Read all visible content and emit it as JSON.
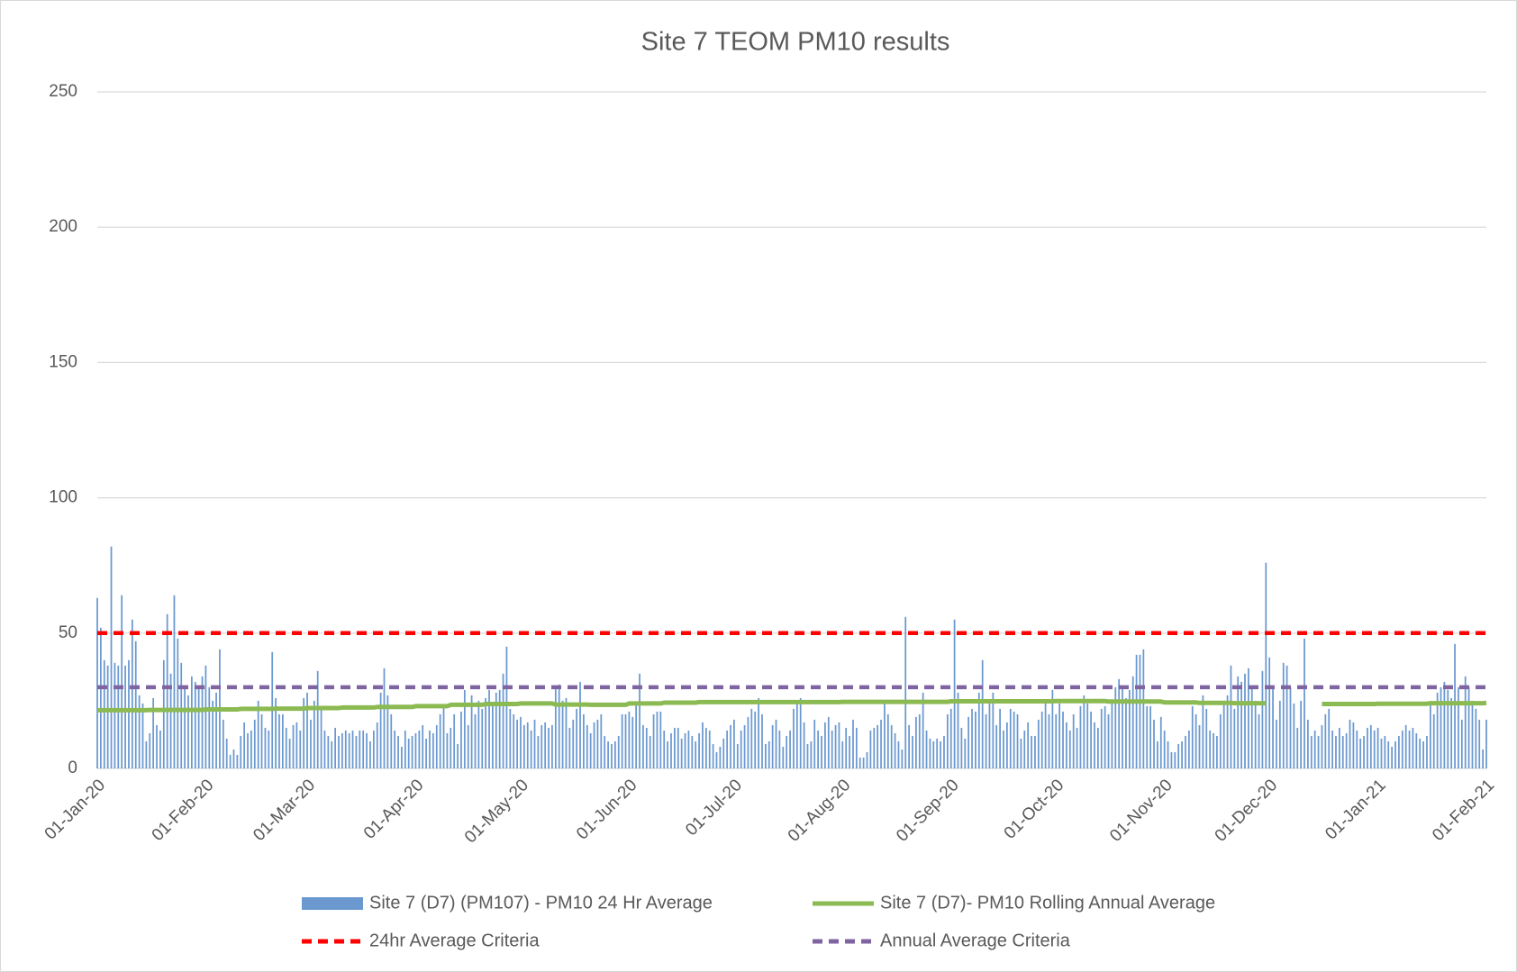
{
  "chart_data": {
    "type": "bar",
    "title": "Site 7 TEOM PM10 results",
    "categories": [
      "01-Jan-20",
      null,
      null,
      null,
      null,
      null,
      null,
      null,
      null,
      null,
      null,
      null,
      null,
      null,
      null,
      null,
      null,
      null,
      null,
      null,
      null,
      null,
      null,
      null,
      null,
      null,
      null,
      null,
      null,
      null,
      null,
      "01-Feb-20",
      null,
      null,
      null,
      null,
      null,
      null,
      null,
      null,
      null,
      null,
      null,
      null,
      null,
      null,
      null,
      null,
      null,
      null,
      null,
      null,
      null,
      null,
      null,
      null,
      null,
      null,
      null,
      null,
      "01-Mar-20",
      null,
      null,
      null,
      null,
      null,
      null,
      null,
      null,
      null,
      null,
      null,
      null,
      null,
      null,
      null,
      null,
      null,
      null,
      null,
      null,
      null,
      null,
      null,
      null,
      null,
      null,
      null,
      null,
      null,
      null,
      "01-Apr-20",
      null,
      null,
      null,
      null,
      null,
      null,
      null,
      null,
      null,
      null,
      null,
      null,
      null,
      null,
      null,
      null,
      null,
      null,
      null,
      null,
      null,
      null,
      null,
      null,
      null,
      null,
      null,
      null,
      null,
      "01-May-20",
      null,
      null,
      null,
      null,
      null,
      null,
      null,
      null,
      null,
      null,
      null,
      null,
      null,
      null,
      null,
      null,
      null,
      null,
      null,
      null,
      null,
      null,
      null,
      null,
      null,
      null,
      null,
      null,
      null,
      null,
      "01-Jun-20",
      null,
      null,
      null,
      null,
      null,
      null,
      null,
      null,
      null,
      null,
      null,
      null,
      null,
      null,
      null,
      null,
      null,
      null,
      null,
      null,
      null,
      null,
      null,
      null,
      null,
      null,
      null,
      null,
      null,
      "01-Jul-20",
      null,
      null,
      null,
      null,
      null,
      null,
      null,
      null,
      null,
      null,
      null,
      null,
      null,
      null,
      null,
      null,
      null,
      null,
      null,
      null,
      null,
      null,
      null,
      null,
      null,
      null,
      null,
      null,
      null,
      null,
      "01-Aug-20",
      null,
      null,
      null,
      null,
      null,
      null,
      null,
      null,
      null,
      null,
      null,
      null,
      null,
      null,
      null,
      null,
      null,
      null,
      null,
      null,
      null,
      null,
      null,
      null,
      null,
      null,
      null,
      null,
      null,
      null,
      "01-Sep-20",
      null,
      null,
      null,
      null,
      null,
      null,
      null,
      null,
      null,
      null,
      null,
      null,
      null,
      null,
      null,
      null,
      null,
      null,
      null,
      null,
      null,
      null,
      null,
      null,
      null,
      null,
      null,
      null,
      null,
      "01-Oct-20",
      null,
      null,
      null,
      null,
      null,
      null,
      null,
      null,
      null,
      null,
      null,
      null,
      null,
      null,
      null,
      null,
      null,
      null,
      null,
      null,
      null,
      null,
      null,
      null,
      null,
      null,
      null,
      null,
      null,
      null,
      "01-Nov-20",
      null,
      null,
      null,
      null,
      null,
      null,
      null,
      null,
      null,
      null,
      null,
      null,
      null,
      null,
      null,
      null,
      null,
      null,
      null,
      null,
      null,
      null,
      null,
      null,
      null,
      null,
      null,
      null,
      null,
      "01-Dec-20",
      null,
      null,
      null,
      null,
      null,
      null,
      null,
      null,
      null,
      null,
      null,
      null,
      null,
      null,
      null,
      null,
      null,
      null,
      null,
      null,
      null,
      null,
      null,
      null,
      null,
      null,
      null,
      null,
      null,
      null,
      "01-Jan-21",
      null,
      null,
      null,
      null,
      null,
      null,
      null,
      null,
      null,
      null,
      null,
      null,
      null,
      null,
      null,
      null,
      null,
      null,
      null,
      null,
      null,
      null,
      null,
      null,
      null,
      null,
      null,
      null,
      null,
      null,
      "01-Feb-21"
    ],
    "series": [
      {
        "name": "Site 7 (D7) (PM107) - PM10 24 Hr Average",
        "type": "bar",
        "color": "#6a98cf",
        "values": [
          63,
          52,
          40,
          38,
          82,
          39,
          38,
          64,
          38,
          40,
          55,
          47,
          27,
          24,
          10,
          13,
          26,
          16,
          14,
          40,
          57,
          35,
          64,
          48,
          39,
          30,
          27,
          34,
          32,
          30,
          34,
          38,
          30,
          25,
          28,
          44,
          18,
          11,
          5,
          7,
          5,
          12,
          17,
          13,
          14,
          18,
          25,
          20,
          15,
          14,
          43,
          26,
          20,
          20,
          15,
          11,
          16,
          17,
          14,
          26,
          28,
          18,
          25,
          36,
          22,
          14,
          12,
          10,
          15,
          12,
          13,
          14,
          13,
          14,
          12,
          14,
          14,
          13,
          10,
          14,
          17,
          28,
          37,
          27,
          20,
          14,
          12,
          8,
          14,
          11,
          12,
          13,
          14,
          16,
          11,
          14,
          13,
          16,
          20,
          23,
          13,
          15,
          20,
          9,
          21,
          29,
          16,
          27,
          20,
          25,
          22,
          26,
          29,
          24,
          28,
          29,
          35,
          45,
          22,
          20,
          18,
          19,
          16,
          17,
          14,
          18,
          12,
          16,
          17,
          15,
          16,
          30,
          31,
          25,
          26,
          15,
          18,
          22,
          32,
          20,
          16,
          13,
          17,
          18,
          20,
          12,
          10,
          9,
          10,
          12,
          20,
          20,
          21,
          19,
          24,
          35,
          16,
          15,
          12,
          20,
          21,
          21,
          14,
          10,
          13,
          15,
          15,
          11,
          13,
          14,
          12,
          10,
          13,
          17,
          15,
          14,
          9,
          6,
          8,
          11,
          14,
          16,
          18,
          9,
          14,
          16,
          19,
          22,
          21,
          26,
          20,
          9,
          10,
          16,
          18,
          14,
          8,
          12,
          14,
          22,
          24,
          26,
          17,
          9,
          10,
          18,
          14,
          12,
          17,
          19,
          14,
          16,
          17,
          10,
          15,
          12,
          18,
          15,
          4,
          4,
          6,
          14,
          15,
          16,
          18,
          24,
          20,
          16,
          13,
          10,
          7,
          56,
          16,
          12,
          19,
          20,
          28,
          14,
          11,
          10,
          11,
          10,
          12,
          20,
          22,
          55,
          28,
          15,
          11,
          19,
          22,
          21,
          28,
          40,
          20,
          25,
          28,
          16,
          22,
          14,
          17,
          22,
          21,
          20,
          11,
          14,
          17,
          12,
          12,
          18,
          21,
          25,
          20,
          29,
          20,
          24,
          21,
          17,
          14,
          20,
          15,
          23,
          27,
          24,
          21,
          17,
          15,
          22,
          23,
          20,
          25,
          30,
          33,
          30,
          26,
          29,
          34,
          42,
          42,
          44,
          23,
          23,
          18,
          10,
          19,
          14,
          10,
          6,
          6,
          9,
          10,
          12,
          14,
          23,
          20,
          16,
          27,
          22,
          14,
          13,
          12,
          20,
          25,
          27,
          38,
          22,
          34,
          32,
          35,
          37,
          30,
          25,
          20,
          36,
          76,
          41,
          30,
          18,
          25,
          39,
          38,
          30,
          24,
          15,
          25,
          48,
          18,
          12,
          14,
          12,
          16,
          20,
          22,
          14,
          12,
          15,
          12,
          13,
          18,
          17,
          14,
          11,
          12,
          15,
          16,
          14,
          15,
          11,
          12,
          10,
          8,
          10,
          12,
          14,
          16,
          14,
          15,
          13,
          11,
          10,
          12,
          24,
          20,
          28,
          30,
          32,
          29,
          26,
          46,
          30,
          18,
          34,
          30,
          25,
          22,
          18,
          7,
          18
        ]
      },
      {
        "name": "Site 7 (D7)- PM10 Rolling Annual Average",
        "type": "line",
        "color": "#8cba52",
        "values": [
          21.5,
          21.5,
          21.5,
          21.5,
          21.5,
          21.5,
          21.5,
          21.5,
          21.5,
          21.5,
          21.5,
          21.5,
          21.5,
          21.5,
          21.5,
          21.6,
          21.6,
          21.6,
          21.6,
          21.6,
          21.6,
          21.6,
          21.6,
          21.6,
          21.6,
          21.6,
          21.6,
          21.6,
          21.6,
          21.6,
          21.6,
          21.8,
          21.8,
          21.8,
          21.8,
          21.8,
          21.8,
          21.8,
          21.8,
          21.8,
          21.8,
          22.0,
          22.0,
          22.0,
          22.0,
          22.0,
          22.0,
          22.0,
          22.0,
          22.0,
          22.0,
          22.1,
          22.1,
          22.1,
          22.1,
          22.1,
          22.1,
          22.1,
          22.1,
          22.1,
          22.3,
          22.3,
          22.3,
          22.3,
          22.3,
          22.3,
          22.3,
          22.3,
          22.3,
          22.3,
          22.5,
          22.5,
          22.5,
          22.5,
          22.5,
          22.5,
          22.5,
          22.5,
          22.5,
          22.5,
          22.7,
          22.7,
          22.7,
          22.7,
          22.7,
          22.7,
          22.7,
          22.7,
          22.7,
          22.7,
          22.7,
          23.0,
          23.0,
          23.0,
          23.0,
          23.0,
          23.0,
          23.0,
          23.0,
          23.0,
          23.0,
          23.5,
          23.5,
          23.5,
          23.5,
          23.5,
          23.5,
          23.5,
          23.5,
          23.5,
          23.5,
          23.8,
          23.8,
          23.8,
          23.8,
          23.8,
          23.8,
          23.8,
          23.8,
          23.8,
          23.8,
          24.0,
          24.0,
          24.0,
          24.0,
          24.0,
          24.0,
          24.0,
          24.0,
          24.0,
          24.0,
          23.6,
          23.6,
          23.6,
          23.6,
          23.6,
          23.6,
          23.6,
          23.6,
          23.6,
          23.6,
          23.5,
          23.5,
          23.5,
          23.5,
          23.5,
          23.5,
          23.5,
          23.5,
          23.5,
          23.5,
          23.5,
          24.0,
          24.0,
          24.0,
          24.0,
          24.0,
          24.0,
          24.0,
          24.0,
          24.0,
          24.0,
          24.3,
          24.3,
          24.3,
          24.3,
          24.3,
          24.3,
          24.3,
          24.3,
          24.3,
          24.3,
          24.5,
          24.5,
          24.5,
          24.5,
          24.5,
          24.5,
          24.5,
          24.5,
          24.5,
          24.5,
          24.5,
          24.5,
          24.5,
          24.5,
          24.5,
          24.5,
          24.5,
          24.5,
          24.5,
          24.5,
          24.5,
          24.5,
          24.5,
          24.5,
          24.5,
          24.5,
          24.5,
          24.5,
          24.5,
          24.5,
          24.5,
          24.5,
          24.5,
          24.5,
          24.5,
          24.5,
          24.5,
          24.5,
          24.5,
          24.5,
          24.5,
          24.6,
          24.6,
          24.6,
          24.6,
          24.6,
          24.6,
          24.6,
          24.6,
          24.6,
          24.6,
          24.6,
          24.6,
          24.6,
          24.6,
          24.6,
          24.6,
          24.6,
          24.6,
          24.6,
          24.6,
          24.6,
          24.6,
          24.6,
          24.6,
          24.6,
          24.6,
          24.6,
          24.6,
          24.6,
          24.6,
          24.6,
          24.8,
          24.8,
          24.8,
          24.8,
          24.8,
          24.8,
          24.8,
          24.8,
          24.8,
          24.8,
          24.8,
          24.8,
          24.8,
          24.8,
          24.8,
          24.8,
          24.8,
          24.8,
          24.8,
          24.8,
          24.8,
          24.8,
          24.8,
          24.8,
          24.8,
          24.8,
          24.8,
          24.8,
          24.8,
          24.8,
          24.9,
          24.9,
          24.9,
          24.9,
          24.9,
          24.9,
          24.9,
          24.9,
          24.9,
          24.9,
          24.9,
          24.9,
          24.9,
          24.9,
          24.9,
          24.7,
          24.7,
          24.7,
          24.7,
          24.7,
          24.7,
          24.7,
          24.7,
          24.7,
          24.7,
          24.7,
          24.7,
          24.7,
          24.7,
          24.7,
          24.7,
          24.4,
          24.4,
          24.4,
          24.4,
          24.4,
          24.4,
          24.4,
          24.4,
          24.4,
          24.4,
          24.2,
          24.2,
          24.2,
          24.2,
          24.2,
          24.2,
          24.2,
          24.2,
          24.2,
          24.2,
          24.1,
          24.1,
          24.1,
          24.1,
          24.1,
          24.1,
          24.1,
          24.1,
          24.1,
          24.1,
          null,
          null,
          null,
          null,
          null,
          null,
          null,
          null,
          null,
          null,
          null,
          null,
          null,
          null,
          null,
          23.8,
          23.8,
          23.8,
          23.8,
          23.8,
          23.8,
          23.8,
          23.8,
          23.8,
          23.8,
          23.8,
          23.8,
          23.8,
          23.8,
          23.8,
          23.8,
          23.9,
          23.9,
          23.9,
          23.9,
          23.9,
          23.9,
          23.9,
          23.9,
          23.9,
          23.9,
          23.9,
          23.9,
          23.9,
          23.9,
          23.9,
          24.1,
          24.1,
          24.1,
          24.1,
          24.1,
          24.1,
          24.1,
          24.1,
          24.1,
          24.1,
          24.1,
          24.1,
          24.1,
          24.1,
          24.1,
          24.1,
          24.2
        ]
      }
    ],
    "reference_lines": [
      {
        "name": "24hr Average Criteria",
        "value": 50,
        "color": "#ff0000",
        "dashed": true
      },
      {
        "name": "Annual Average Criteria",
        "value": 30,
        "color": "#8064a2",
        "dashed": true
      }
    ],
    "ylim": [
      0,
      250
    ],
    "yticks": [
      0,
      50,
      100,
      150,
      200,
      250
    ],
    "grid": true,
    "legend": "bottom"
  }
}
